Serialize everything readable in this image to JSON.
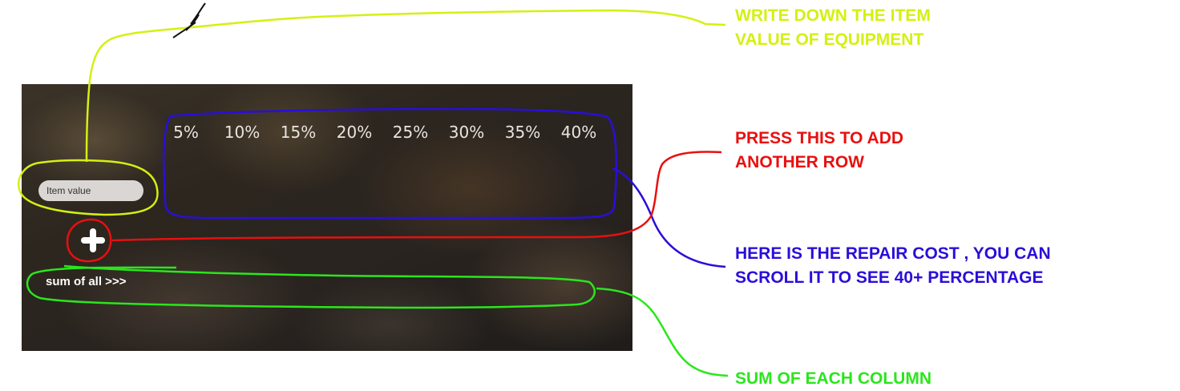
{
  "app": {
    "percentages": [
      "5%",
      "10%",
      "15%",
      "20%",
      "25%",
      "30%",
      "35%",
      "40%"
    ],
    "item_input_placeholder": "Item value",
    "add_button_icon": "plus-icon",
    "sum_label": "sum of all >>>"
  },
  "annotations": {
    "item_value_note": [
      "WRITE DOWN THE ITEM",
      "VALUE OF EQUIPMENT"
    ],
    "add_row_note": [
      "PRESS THIS TO ADD",
      "ANOTHER ROW"
    ],
    "repair_cost_note": [
      "HERE IS THE REPAIR COST , YOU CAN",
      "SCROLL IT TO SEE 40+ PERCENTAGE"
    ],
    "sum_note": [
      "SUM OF EACH COLUMN"
    ]
  },
  "colors": {
    "yellow_note": "#d4f013",
    "red_note": "#e8100f",
    "blue_note": "#2a0ed8",
    "green_note": "#2be61c"
  }
}
